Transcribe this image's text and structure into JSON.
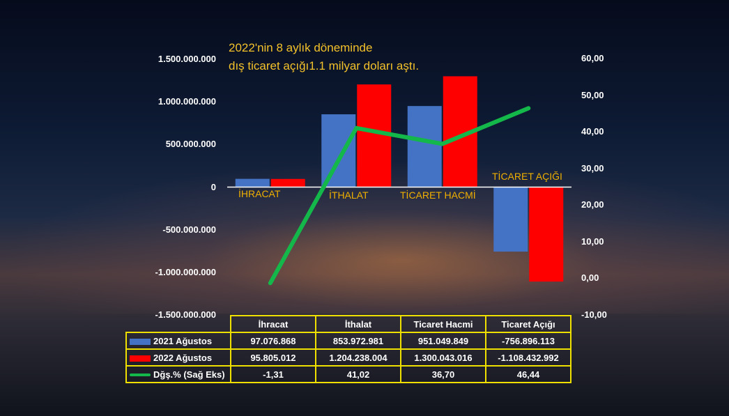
{
  "title": "2022'nin 8 aylık döneminde\ndış ticaret açığı1.1 milyar doları aştı.",
  "colors": {
    "series_2021": "#4472c4",
    "series_2022": "#ff0000",
    "change_line": "#14b84a",
    "category_text": "#f0b000",
    "table_border": "#f0e000",
    "title_text": "#f3c12a"
  },
  "chart_data": {
    "type": "bar",
    "categories": [
      "İHRACAT",
      "İTHALAT",
      "TİCARET HACMİ",
      "TİCARET AÇIĞI"
    ],
    "series": [
      {
        "name": "2021 Ağustos",
        "type": "bar",
        "axis": "left",
        "values": [
          97076868,
          853972981,
          951049849,
          -756896113
        ]
      },
      {
        "name": "2022 Ağustos",
        "type": "bar",
        "axis": "left",
        "values": [
          95805012,
          1204238004,
          1300043016,
          -1108432992
        ]
      },
      {
        "name": "Dğş.% (Sağ Eks)",
        "type": "line",
        "axis": "right",
        "values": [
          -1.31,
          41.02,
          36.7,
          46.44
        ]
      }
    ],
    "ylim": [
      -1500000000,
      1500000000
    ],
    "ylim_right": [
      -10,
      60
    ],
    "yticks_left": [
      "1.500.000.000",
      "1.000.000.000",
      "500.000.000",
      "0",
      "-500.000.000",
      "-1.000.000.000",
      "-1.500.000.000"
    ],
    "yticks_left_values": [
      1500000000,
      1000000000,
      500000000,
      0,
      -500000000,
      -1000000000,
      -1500000000
    ],
    "yticks_right": [
      "60,00",
      "50,00",
      "40,00",
      "30,00",
      "20,00",
      "10,00",
      "0,00",
      "-10,00"
    ],
    "yticks_right_values": [
      60,
      50,
      40,
      30,
      20,
      10,
      0,
      -10
    ],
    "legend": "table-bottom"
  },
  "table": {
    "headers": [
      "İhracat",
      "İthalat",
      "Ticaret Hacmi",
      "Ticaret Açığı"
    ],
    "rows": [
      {
        "label": "2021 Ağustos",
        "cells": [
          "97.076.868",
          "853.972.981",
          "951.049.849",
          "-756.896.113"
        ]
      },
      {
        "label": "2022 Ağustos",
        "cells": [
          "95.805.012",
          "1.204.238.004",
          "1.300.043.016",
          "-1.108.432.992"
        ]
      },
      {
        "label": "Dğş.% (Sağ Eks)",
        "cells": [
          "-1,31",
          "41,02",
          "36,70",
          "46,44"
        ]
      }
    ]
  }
}
